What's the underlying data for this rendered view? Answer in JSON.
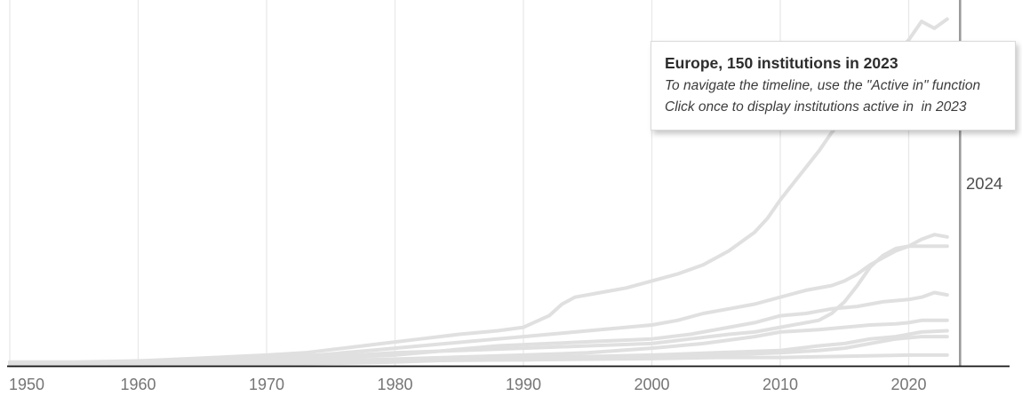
{
  "chart": {
    "today_label": "2024",
    "tooltip": {
      "title": "Europe, 150 institutions in 2023",
      "line1": "To navigate the timeline, use the \"Active in\" function",
      "line2": "Click once to display institutions active in  in 2023"
    },
    "colors": {
      "background": "#ffffff",
      "gridline": "#e9e9e9",
      "series_line": "#e0e0e0",
      "today_line": "#9b9b9b",
      "axis_line": "#151515",
      "tick_label": "#757575",
      "today_label": "#4d4d4d",
      "tooltip_border": "#d9d9d9",
      "tooltip_title": "#2d2d2d",
      "tooltip_text": "#3c3c3c"
    }
  },
  "chart_data": {
    "type": "line",
    "title": "",
    "xlabel": "",
    "ylabel": "",
    "x_ticks": [
      1950,
      1960,
      1970,
      1980,
      1990,
      2000,
      2010,
      2020
    ],
    "x_range": [
      1950,
      2028
    ],
    "ylim": [
      0,
      159
    ],
    "grid": "vertical-decade-lines",
    "legend": "none",
    "today_line_year": 2024,
    "highlighted_series": {
      "name": "Europe",
      "year": 2023,
      "value": 150
    },
    "series": [
      {
        "name": "",
        "points": [
          [
            1950,
            1
          ],
          [
            1960,
            1.5
          ],
          [
            1970,
            2.5
          ],
          [
            1980,
            3
          ],
          [
            1990,
            3
          ],
          [
            2000,
            3.5
          ],
          [
            2005,
            4
          ],
          [
            2010,
            4
          ],
          [
            2015,
            4.5
          ],
          [
            2020,
            5
          ],
          [
            2023,
            5
          ]
        ]
      },
      {
        "name": "",
        "points": [
          [
            1950,
            1
          ],
          [
            1960,
            1.5
          ],
          [
            1970,
            1.5
          ],
          [
            1980,
            2.5
          ],
          [
            1990,
            3
          ],
          [
            2000,
            4
          ],
          [
            2005,
            5
          ],
          [
            2010,
            6
          ],
          [
            2013,
            7
          ],
          [
            2015,
            8
          ],
          [
            2017,
            10
          ],
          [
            2018,
            11
          ],
          [
            2019,
            12
          ],
          [
            2021,
            13
          ],
          [
            2023,
            13
          ]
        ]
      },
      {
        "name": "",
        "points": [
          [
            1950,
            0.5
          ],
          [
            1960,
            0.5
          ],
          [
            1970,
            1
          ],
          [
            1980,
            2
          ],
          [
            1985,
            3
          ],
          [
            1990,
            4
          ],
          [
            1996,
            4.5
          ],
          [
            2000,
            5
          ],
          [
            2005,
            6
          ],
          [
            2010,
            7
          ],
          [
            2013,
            9
          ],
          [
            2015,
            10
          ],
          [
            2017,
            12
          ],
          [
            2019,
            13
          ],
          [
            2020,
            14
          ],
          [
            2021,
            15
          ],
          [
            2023,
            15.5
          ]
        ]
      },
      {
        "name": "",
        "points": [
          [
            1950,
            0.5
          ],
          [
            1958,
            1
          ],
          [
            1966,
            1.5
          ],
          [
            1972,
            2
          ],
          [
            1978,
            3
          ],
          [
            1984,
            4
          ],
          [
            1990,
            5
          ],
          [
            1995,
            6
          ],
          [
            2000,
            8
          ],
          [
            2004,
            10
          ],
          [
            2008,
            13
          ],
          [
            2010,
            15
          ],
          [
            2013,
            16
          ],
          [
            2015,
            17
          ],
          [
            2017,
            18
          ],
          [
            2019,
            18.5
          ],
          [
            2020,
            19
          ],
          [
            2021,
            20
          ],
          [
            2023,
            20
          ]
        ]
      },
      {
        "name": "",
        "points": [
          [
            1950,
            1
          ],
          [
            1956,
            1
          ],
          [
            1962,
            2
          ],
          [
            1968,
            2.5
          ],
          [
            1974,
            3.5
          ],
          [
            1980,
            5
          ],
          [
            1984,
            7
          ],
          [
            1988,
            9
          ],
          [
            1992,
            10
          ],
          [
            1996,
            11
          ],
          [
            2000,
            12
          ],
          [
            2003,
            14
          ],
          [
            2006,
            17
          ],
          [
            2008,
            19
          ],
          [
            2010,
            22
          ],
          [
            2012,
            23
          ],
          [
            2014,
            25
          ],
          [
            2016,
            26
          ],
          [
            2018,
            28
          ],
          [
            2020,
            29
          ],
          [
            2021,
            30
          ],
          [
            2022,
            32
          ],
          [
            2023,
            31
          ]
        ]
      },
      {
        "name": "",
        "points": [
          [
            1950,
            1
          ],
          [
            1956,
            1.5
          ],
          [
            1962,
            2
          ],
          [
            1968,
            3
          ],
          [
            1974,
            4
          ],
          [
            1980,
            6
          ],
          [
            1985,
            7
          ],
          [
            1990,
            8
          ],
          [
            1995,
            9
          ],
          [
            2000,
            10
          ],
          [
            2003,
            12
          ],
          [
            2006,
            14
          ],
          [
            2008,
            15
          ],
          [
            2010,
            17
          ],
          [
            2012,
            19
          ],
          [
            2013,
            20
          ],
          [
            2014,
            23
          ],
          [
            2015,
            28
          ],
          [
            2016,
            35
          ],
          [
            2017,
            43
          ],
          [
            2018,
            48
          ],
          [
            2019,
            51
          ],
          [
            2020,
            52
          ],
          [
            2022,
            52
          ],
          [
            2023,
            52
          ]
        ]
      },
      {
        "name": "",
        "points": [
          [
            1950,
            2
          ],
          [
            1955,
            2
          ],
          [
            1960,
            2.5
          ],
          [
            1965,
            3
          ],
          [
            1970,
            4
          ],
          [
            1974,
            5
          ],
          [
            1978,
            7
          ],
          [
            1982,
            9
          ],
          [
            1986,
            11
          ],
          [
            1990,
            13
          ],
          [
            1994,
            15
          ],
          [
            1998,
            17
          ],
          [
            2000,
            18
          ],
          [
            2002,
            20
          ],
          [
            2004,
            23
          ],
          [
            2006,
            25
          ],
          [
            2008,
            27
          ],
          [
            2010,
            30
          ],
          [
            2012,
            33
          ],
          [
            2014,
            35
          ],
          [
            2015,
            37
          ],
          [
            2016,
            40
          ],
          [
            2017,
            44
          ],
          [
            2018,
            47
          ],
          [
            2019,
            50
          ],
          [
            2020,
            52
          ],
          [
            2021,
            55
          ],
          [
            2022,
            57
          ],
          [
            2023,
            56
          ]
        ]
      },
      {
        "name": "Europe",
        "points": [
          [
            1950,
            1.5
          ],
          [
            1954,
            1.5
          ],
          [
            1958,
            2
          ],
          [
            1962,
            3
          ],
          [
            1966,
            4
          ],
          [
            1970,
            5
          ],
          [
            1973,
            6
          ],
          [
            1976,
            8
          ],
          [
            1979,
            10
          ],
          [
            1982,
            12
          ],
          [
            1985,
            14
          ],
          [
            1988,
            15.5
          ],
          [
            1990,
            17
          ],
          [
            1992,
            22
          ],
          [
            1993,
            27
          ],
          [
            1994,
            30
          ],
          [
            1996,
            32
          ],
          [
            1998,
            34
          ],
          [
            2000,
            37
          ],
          [
            2002,
            40
          ],
          [
            2004,
            44
          ],
          [
            2006,
            50
          ],
          [
            2008,
            58
          ],
          [
            2009,
            64
          ],
          [
            2010,
            72
          ],
          [
            2011,
            79
          ],
          [
            2012,
            86
          ],
          [
            2013,
            93
          ],
          [
            2014,
            101
          ],
          [
            2015,
            108
          ],
          [
            2016,
            115
          ],
          [
            2017,
            122
          ],
          [
            2018,
            129
          ],
          [
            2019,
            135
          ],
          [
            2020,
            141
          ],
          [
            2021,
            149
          ],
          [
            2022,
            146
          ],
          [
            2023,
            150
          ]
        ]
      }
    ]
  }
}
